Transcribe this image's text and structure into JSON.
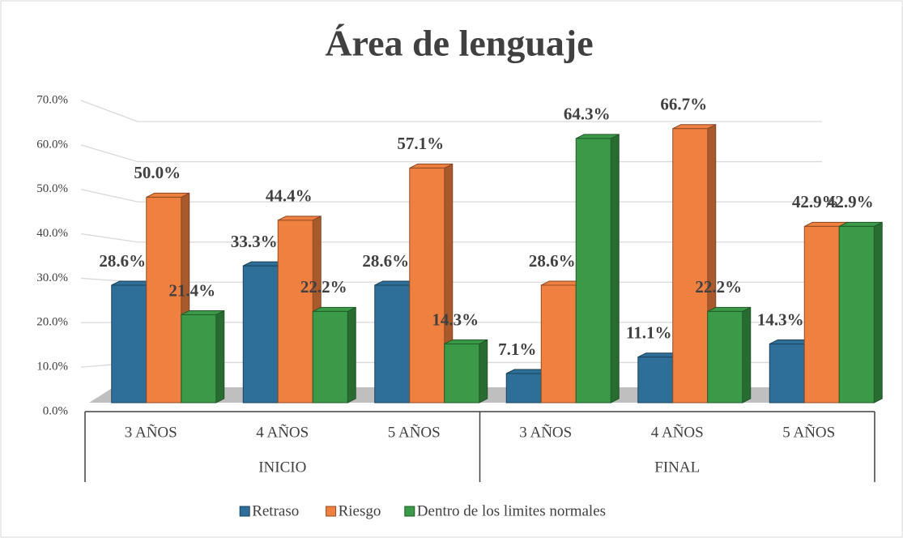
{
  "chart_data": {
    "type": "bar3d",
    "title": "Área de lenguaje",
    "groups": [
      {
        "name": "INICIO",
        "categories": [
          "3 AÑOS",
          "4 AÑOS",
          "5 AÑOS"
        ]
      },
      {
        "name": "FINAL",
        "categories": [
          "3 AÑOS",
          "4 AÑOS",
          "5 AÑOS"
        ]
      }
    ],
    "series": [
      {
        "name": "Retraso",
        "color": "#2e6f99",
        "values": [
          28.6,
          33.3,
          28.6,
          7.1,
          11.1,
          14.3
        ],
        "value_labels": [
          "28.6%",
          "33.3%",
          "28.6%",
          "7.1%",
          "11.1%",
          "14.3%"
        ]
      },
      {
        "name": "Riesgo",
        "color": "#f08040",
        "values": [
          50.0,
          44.4,
          57.1,
          28.6,
          66.7,
          42.9
        ],
        "value_labels": [
          "50.0%",
          "44.4%",
          "57.1%",
          "28.6%",
          "66.7%",
          "42.9%"
        ]
      },
      {
        "name": "Dentro de los limites normales",
        "color": "#3a9a48",
        "values": [
          21.4,
          22.2,
          14.3,
          64.3,
          22.2,
          42.9
        ],
        "value_labels": [
          "21.4%",
          "22.2%",
          "14.3%",
          "64.3%",
          "22.2%",
          "42.9%"
        ]
      }
    ],
    "ylim": [
      0,
      70
    ],
    "yticks": [
      {
        "value": 0,
        "label": "0.0%"
      },
      {
        "value": 10,
        "label": "10.0%"
      },
      {
        "value": 20,
        "label": "20.0%"
      },
      {
        "value": 30,
        "label": "30.0%"
      },
      {
        "value": 40,
        "label": "40.0%"
      },
      {
        "value": 50,
        "label": "50.0%"
      },
      {
        "value": 60,
        "label": "60.0%"
      },
      {
        "value": 70,
        "label": "70.0%"
      }
    ],
    "grid": true
  }
}
